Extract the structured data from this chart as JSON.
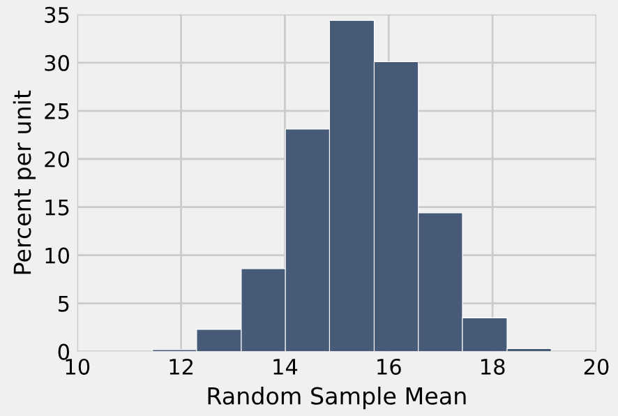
{
  "chart_data": {
    "type": "histogram",
    "xlabel": "Random Sample Mean",
    "ylabel": "Percent per unit",
    "bins": [
      11.45,
      12.3,
      13.16,
      14.01,
      14.86,
      15.72,
      16.57,
      17.42,
      18.28,
      19.13
    ],
    "values": [
      0.2,
      2.3,
      8.6,
      23.1,
      34.4,
      30.1,
      14.4,
      3.5,
      0.3
    ],
    "color": "#475a78",
    "xlim": [
      10,
      20
    ],
    "xticks": [
      10,
      12,
      14,
      16,
      18,
      20
    ],
    "ylim": [
      0,
      35
    ],
    "yticks": [
      0,
      5,
      10,
      15,
      20,
      25,
      30,
      35
    ],
    "grid": true
  }
}
